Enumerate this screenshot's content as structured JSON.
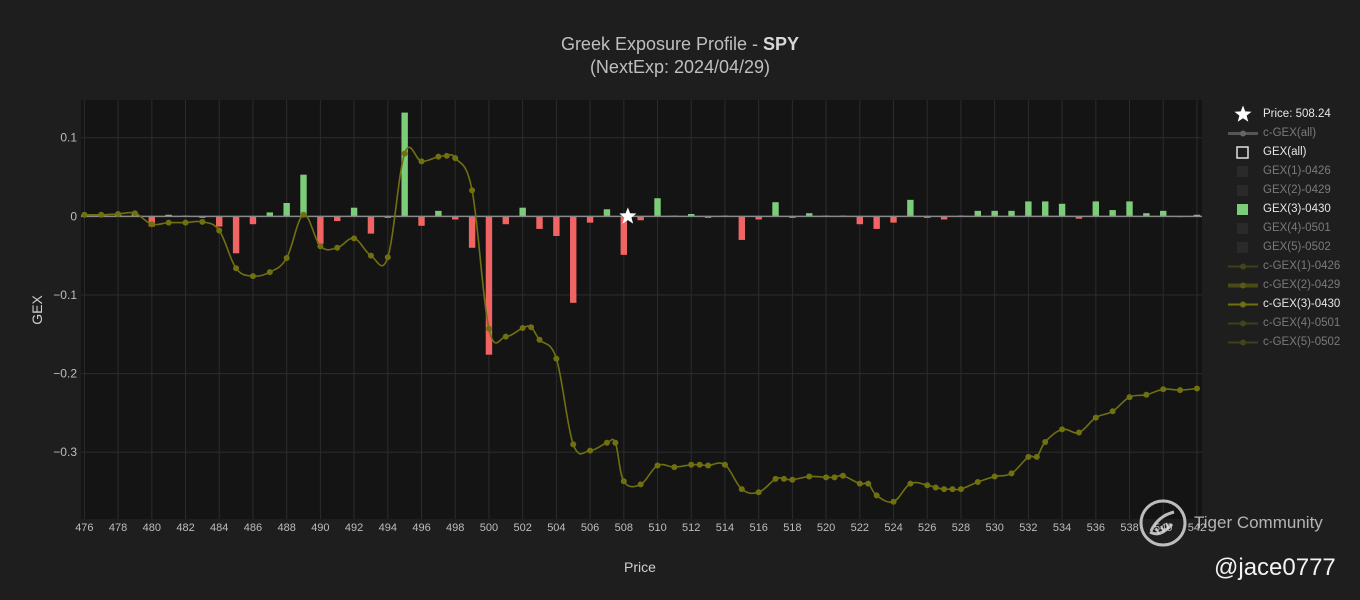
{
  "title": {
    "main": "Greek Exposure Profile - ",
    "ticker": "SPY",
    "sub": "(NextExp: 2024/04/29)"
  },
  "watermark": {
    "text": "Tiger Community",
    "handle": "@jace0777"
  },
  "colors": {
    "bg": "#1e1e1e",
    "plot_bg": "#141414",
    "grid": "#2c2c2c",
    "positive": "#7ccd7a",
    "negative": "#f06464",
    "cgex": "#707010"
  },
  "legend": [
    {
      "label": "Price: 508.24",
      "symbol": "star",
      "state": "on"
    },
    {
      "label": "c-GEX(all)",
      "symbol": "line-gray",
      "state": "off"
    },
    {
      "label": "GEX(all)",
      "symbol": "box-outline",
      "state": "on"
    },
    {
      "label": "GEX(1)-0426",
      "symbol": "box-dark",
      "state": "off"
    },
    {
      "label": "GEX(2)-0429",
      "symbol": "box-dark",
      "state": "off"
    },
    {
      "label": "GEX(3)-0430",
      "symbol": "box-green",
      "state": "on"
    },
    {
      "label": "GEX(4)-0501",
      "symbol": "box-dark",
      "state": "off"
    },
    {
      "label": "GEX(5)-0502",
      "symbol": "box-dark",
      "state": "off"
    },
    {
      "label": "c-GEX(1)-0426",
      "symbol": "line-olive-dim",
      "state": "off"
    },
    {
      "label": "c-GEX(2)-0429",
      "symbol": "line-olive-thick",
      "state": "off"
    },
    {
      "label": "c-GEX(3)-0430",
      "symbol": "line-olive",
      "state": "on"
    },
    {
      "label": "c-GEX(4)-0501",
      "symbol": "line-olive-dim",
      "state": "off"
    },
    {
      "label": "c-GEX(5)-0502",
      "symbol": "line-olive-dim",
      "state": "off"
    }
  ],
  "chart_data": {
    "type": "bar",
    "title": "Greek Exposure Profile - SPY",
    "subtitle": "(NextExp: 2024/04/29)",
    "xlabel": "Price",
    "ylabel": "GEX",
    "xlim": [
      475.8,
      542.3
    ],
    "ylim": [
      -0.385,
      0.148
    ],
    "xticks": [
      "476",
      "478",
      "480",
      "482",
      "484",
      "486",
      "488",
      "490",
      "492",
      "494",
      "496",
      "498",
      "500",
      "502",
      "504",
      "506",
      "508",
      "510",
      "512",
      "514",
      "516",
      "518",
      "520",
      "522",
      "524",
      "526",
      "528",
      "530",
      "532",
      "534",
      "536",
      "538",
      "540",
      "542"
    ],
    "xtick_values": [
      476,
      478,
      480,
      482,
      484,
      486,
      488,
      490,
      492,
      494,
      496,
      498,
      500,
      502,
      504,
      506,
      508,
      510,
      512,
      514,
      516,
      518,
      520,
      522,
      524,
      526,
      528,
      530,
      532,
      534,
      536,
      538,
      540,
      542
    ],
    "yticks": [
      "0.1",
      "0",
      "−0.1",
      "−0.2",
      "−0.3"
    ],
    "ytick_values": [
      0.1,
      0,
      -0.1,
      -0.2,
      -0.3
    ],
    "grid": true,
    "legend_position": "right",
    "price_marker": {
      "name": "Price: 508.24",
      "x": 508.24,
      "y": 0
    },
    "series": [
      {
        "name": "GEX(3)-0430",
        "type": "bar",
        "x": [
          476,
          477,
          478,
          479,
          480,
          481,
          482,
          483,
          484,
          485,
          486,
          487,
          488,
          489,
          490,
          491,
          492,
          493,
          494,
          495,
          496,
          497,
          498,
          499,
          500,
          501,
          502,
          503,
          504,
          505,
          506,
          507,
          508,
          509,
          510,
          511,
          512,
          513,
          514,
          515,
          516,
          517,
          518,
          519,
          520,
          521,
          522,
          523,
          524,
          525,
          526,
          527,
          528,
          529,
          530,
          531,
          532,
          533,
          534,
          535,
          536,
          537,
          538,
          539,
          540,
          541,
          542
        ],
        "values": [
          0.002,
          0.001,
          0.002,
          0.004,
          -0.013,
          0.002,
          0.001,
          -0.002,
          -0.013,
          -0.047,
          -0.01,
          0.005,
          0.017,
          0.053,
          -0.035,
          -0.006,
          0.011,
          -0.022,
          -0.002,
          0.132,
          -0.012,
          0.007,
          -0.004,
          -0.04,
          -0.176,
          -0.01,
          0.011,
          -0.016,
          -0.025,
          -0.11,
          -0.008,
          0.009,
          -0.049,
          -0.005,
          0.023,
          0.001,
          0.003,
          -0.002,
          0.001,
          -0.03,
          -0.004,
          0.018,
          -0.002,
          0.004,
          0.001,
          0.001,
          -0.01,
          -0.016,
          -0.008,
          0.021,
          -0.002,
          -0.004,
          0.001,
          0.007,
          0.007,
          0.007,
          0.019,
          0.019,
          0.016,
          -0.003,
          0.019,
          0.008,
          0.019,
          0.004,
          0.007,
          -0.001,
          0.002
        ]
      },
      {
        "name": "c-GEX(3)-0430",
        "type": "line",
        "x": [
          476,
          477,
          478,
          479,
          480,
          481,
          482,
          483,
          484,
          485,
          486,
          487,
          488,
          489,
          490,
          491,
          492,
          493,
          494,
          495,
          496,
          497,
          497.5,
          498,
          499,
          500,
          501,
          502,
          502.5,
          503,
          504,
          505,
          506,
          507,
          507.5,
          508,
          509,
          510,
          511,
          512,
          512.5,
          513,
          514,
          515,
          516,
          517,
          517.5,
          518,
          519,
          520,
          520.5,
          521,
          522,
          522.5,
          523,
          524,
          525,
          526,
          526.5,
          527,
          527.5,
          528,
          529,
          530,
          531,
          532,
          532.5,
          533,
          534,
          535,
          536,
          537,
          538,
          539,
          540,
          541,
          542
        ],
        "values": [
          0.002,
          0.002,
          0.003,
          0.004,
          -0.01,
          -0.008,
          -0.008,
          -0.007,
          -0.018,
          -0.066,
          -0.076,
          -0.071,
          -0.053,
          0.002,
          -0.038,
          -0.04,
          -0.028,
          -0.05,
          -0.052,
          0.08,
          0.07,
          0.076,
          0.077,
          0.074,
          0.033,
          -0.143,
          -0.153,
          -0.142,
          -0.141,
          -0.157,
          -0.181,
          -0.29,
          -0.298,
          -0.288,
          -0.288,
          -0.337,
          -0.341,
          -0.317,
          -0.319,
          -0.316,
          -0.316,
          -0.317,
          -0.316,
          -0.347,
          -0.351,
          -0.334,
          -0.334,
          -0.335,
          -0.331,
          -0.332,
          -0.332,
          -0.33,
          -0.34,
          -0.34,
          -0.355,
          -0.363,
          -0.34,
          -0.342,
          -0.345,
          -0.347,
          -0.347,
          -0.347,
          -0.338,
          -0.331,
          -0.327,
          -0.306,
          -0.306,
          -0.287,
          -0.271,
          -0.275,
          -0.256,
          -0.248,
          -0.23,
          -0.227,
          -0.22,
          -0.221,
          -0.219
        ]
      }
    ]
  }
}
